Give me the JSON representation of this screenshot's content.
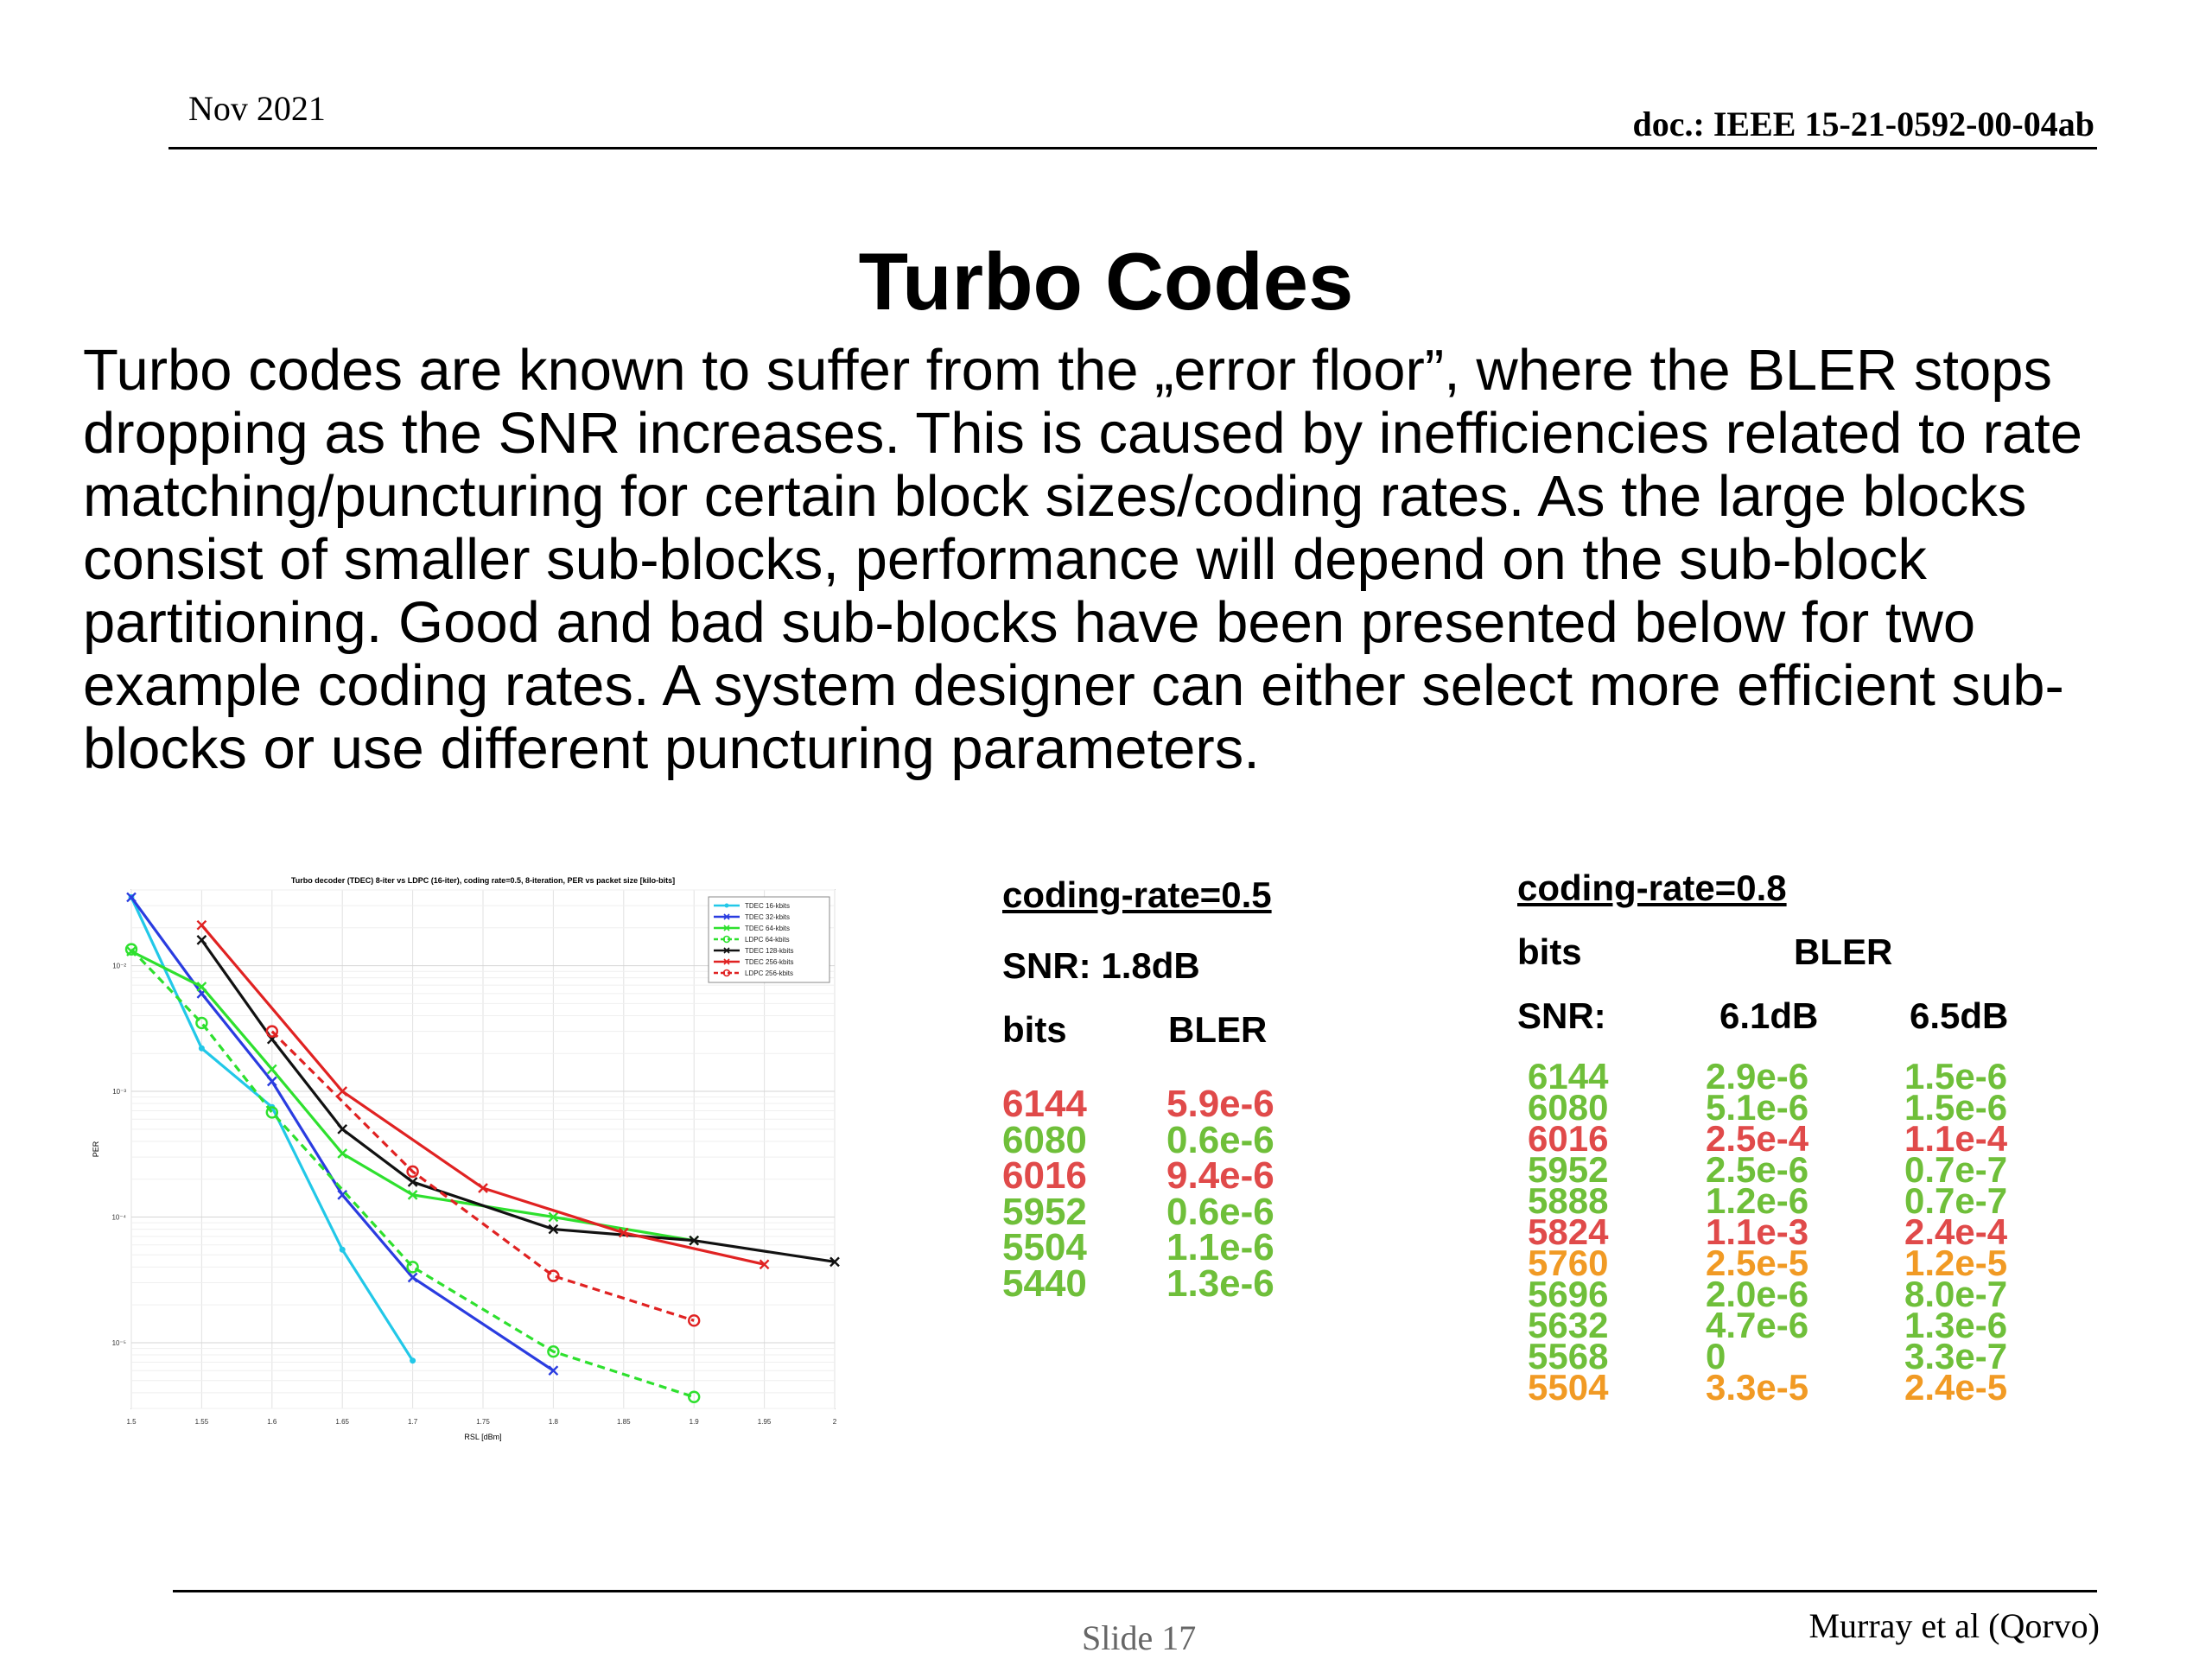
{
  "header": {
    "date": "Nov 2021",
    "doc": "doc.: IEEE 15-21-0592-00-04ab"
  },
  "title": "Turbo Codes",
  "paragraph1": "Turbo codes are known to suffer from the „error floor”, where the BLER stops dropping as the SNR increases. This is caused by inefficiencies related to rate matching/puncturing for certain block sizes/coding rates. As the large blocks consist of smaller sub-blocks, performance will depend on the sub-block partitioning. Good and bad sub-blocks have been presented below for two",
  "paragraph2": "example coding rates. A system designer can either select more efficient sub-blocks or use different puncturing parameters.",
  "footer": {
    "slide": "Slide 17",
    "author": "Murray et al (Qorvo)"
  },
  "colors": {
    "good": "#6fbf3a",
    "bad": "#e04a4a",
    "marginal": "#f19a24"
  },
  "table1": {
    "title": "coding-rate=0.5",
    "snr": "SNR: 1.8dB",
    "col_bits": "bits",
    "col_bler": "BLER",
    "rows": [
      {
        "bits": "6144",
        "bler": "5.9e-6",
        "status": "red"
      },
      {
        "bits": "6080",
        "bler": "0.6e-6",
        "status": "green"
      },
      {
        "bits": "6016",
        "bler": "9.4e-6",
        "status": "red"
      },
      {
        "bits": "5952",
        "bler": "0.6e-6",
        "status": "green"
      },
      {
        "bits": "5504",
        "bler": "1.1e-6",
        "status": "green"
      },
      {
        "bits": "5440",
        "bler": "1.3e-6",
        "status": "green"
      }
    ]
  },
  "table2": {
    "title": "coding-rate=0.8",
    "col_bits": "bits",
    "col_bler": "BLER",
    "snr_label": "SNR:",
    "snr1": "6.1dB",
    "snr2": "6.5dB",
    "rows": [
      {
        "bits": "6144",
        "a": "2.9e-6",
        "b": "1.5e-6",
        "status": "green"
      },
      {
        "bits": "6080",
        "a": "5.1e-6",
        "b": "1.5e-6",
        "status": "green"
      },
      {
        "bits": "6016",
        "a": "2.5e-4",
        "b": "1.1e-4",
        "status": "red"
      },
      {
        "bits": "5952",
        "a": "2.5e-6",
        "b": "0.7e-7",
        "status": "green"
      },
      {
        "bits": "5888",
        "a": "1.2e-6",
        "b": "0.7e-7",
        "status": "green"
      },
      {
        "bits": "5824",
        "a": "1.1e-3",
        "b": "2.4e-4",
        "status": "red"
      },
      {
        "bits": "5760",
        "a": "2.5e-5",
        "b": "1.2e-5",
        "status": "orange"
      },
      {
        "bits": "5696",
        "a": "2.0e-6",
        "b": "8.0e-7",
        "status": "green"
      },
      {
        "bits": "5632",
        "a": "4.7e-6",
        "b": "1.3e-6",
        "status": "green"
      },
      {
        "bits": "5568",
        "a": "0",
        "b": "3.3e-7",
        "status": "green"
      },
      {
        "bits": "5504",
        "a": "3.3e-5",
        "b": "2.4e-5",
        "status": "orange"
      }
    ]
  },
  "chart_data": {
    "type": "line",
    "title": "Turbo decoder (TDEC) 8-iter vs LDPC (16-iter), coding rate=0.5, 8-iteration, PER vs packet size [kilo-bits]",
    "xlabel": "RSL [dBm]",
    "ylabel": "PER",
    "xlim": [
      1.5,
      2.0
    ],
    "ylim": [
      3e-06,
      0.04
    ],
    "log_y": true,
    "grid": true,
    "legend_position": "top-right",
    "x_ticks": [
      "1.5",
      "1.55",
      "1.6",
      "1.65",
      "1.7",
      "1.75",
      "1.8",
      "1.85",
      "1.9",
      "1.95",
      "2"
    ],
    "y_ticks": [
      {
        "v": 0.01,
        "label": "10⁻²"
      },
      {
        "v": 0.001,
        "label": "10⁻³"
      },
      {
        "v": 0.0001,
        "label": "10⁻⁴"
      },
      {
        "v": 1e-05,
        "label": "10⁻⁵"
      }
    ],
    "series": [
      {
        "name": "TDEC 16-kbits",
        "color": "#22c8e8",
        "dash": false,
        "marker": "dot",
        "points": [
          [
            1.5,
            0.035
          ],
          [
            1.55,
            0.0022
          ],
          [
            1.6,
            0.00075
          ],
          [
            1.65,
            5.5e-05
          ],
          [
            1.7,
            7.2e-06
          ]
        ]
      },
      {
        "name": "TDEC 32-kbits",
        "color": "#2a3ce0",
        "dash": false,
        "marker": "x",
        "points": [
          [
            1.5,
            0.035
          ],
          [
            1.55,
            0.006
          ],
          [
            1.6,
            0.0012
          ],
          [
            1.65,
            0.00015
          ],
          [
            1.7,
            3.3e-05
          ],
          [
            1.8,
            6e-06
          ]
        ]
      },
      {
        "name": "TDEC 64-kbits",
        "color": "#2ee02e",
        "dash": false,
        "marker": "x",
        "points": [
          [
            1.5,
            0.013
          ],
          [
            1.55,
            0.0068
          ],
          [
            1.6,
            0.0015
          ],
          [
            1.65,
            0.00032
          ],
          [
            1.7,
            0.00015
          ],
          [
            1.8,
            0.0001
          ],
          [
            1.9,
            6.5e-05
          ]
        ]
      },
      {
        "name": "LDPC 64-kbits",
        "color": "#2ee02e",
        "dash": true,
        "marker": "o",
        "points": [
          [
            1.5,
            0.0135
          ],
          [
            1.55,
            0.0035
          ],
          [
            1.6,
            0.00068
          ],
          [
            1.7,
            4e-05
          ],
          [
            1.8,
            8.5e-06
          ],
          [
            1.9,
            3.7e-06
          ]
        ]
      },
      {
        "name": "TDEC 128-kbits",
        "color": "#111111",
        "dash": false,
        "marker": "x",
        "points": [
          [
            1.55,
            0.016
          ],
          [
            1.6,
            0.0026
          ],
          [
            1.65,
            0.0005
          ],
          [
            1.7,
            0.00019
          ],
          [
            1.8,
            8e-05
          ],
          [
            1.9,
            6.5e-05
          ],
          [
            2.0,
            4.4e-05
          ]
        ]
      },
      {
        "name": "TDEC 256-kbits",
        "color": "#e02222",
        "dash": false,
        "marker": "x",
        "points": [
          [
            1.55,
            0.021
          ],
          [
            1.65,
            0.001
          ],
          [
            1.75,
            0.00017
          ],
          [
            1.85,
            7.5e-05
          ],
          [
            1.95,
            4.2e-05
          ]
        ]
      },
      {
        "name": "LDPC 256-kbits",
        "color": "#e02222",
        "dash": true,
        "marker": "o",
        "points": [
          [
            1.6,
            0.003
          ],
          [
            1.7,
            0.00023
          ],
          [
            1.8,
            3.4e-05
          ],
          [
            1.9,
            1.5e-05
          ]
        ]
      }
    ]
  }
}
